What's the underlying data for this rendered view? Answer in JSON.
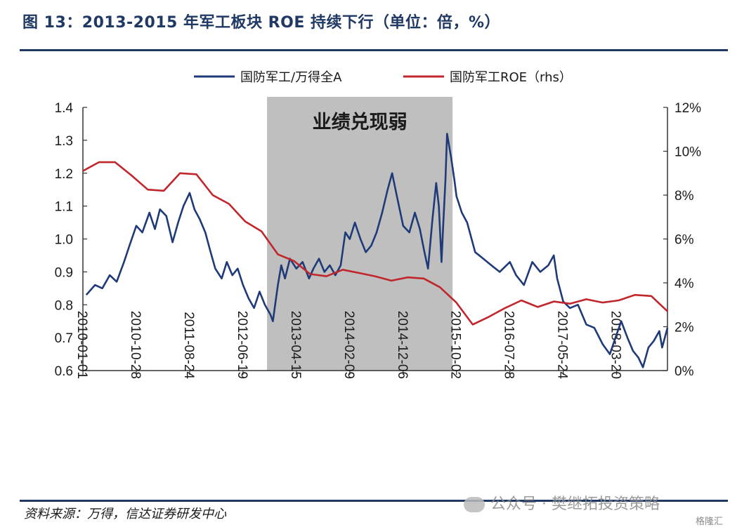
{
  "header": {
    "title": "图 13：2013-2015 年军工板块 ROE 持续下行（单位：倍，%）"
  },
  "footer": {
    "source": "资料来源：万得，信达证券研发中心",
    "watermark": "公众号 · 樊继拓投资策略",
    "stamp": "格隆汇"
  },
  "colors": {
    "series_left": "#1f3a78",
    "series_right": "#c0262c",
    "shade": "#bfbfbf",
    "title": "#1f3864"
  },
  "chart_data": {
    "type": "line",
    "title": "",
    "x_tick_labels": [
      "2010-01-01",
      "2010-10-28",
      "2011-08-24",
      "2012-06-19",
      "2013-04-15",
      "2014-02-09",
      "2014-12-06",
      "2015-10-02",
      "2016-07-28",
      "2017-05-24",
      "2018-03-20"
    ],
    "xlim": [
      "2010-01-01",
      "2018-12-31"
    ],
    "ylim_left": [
      0.6,
      1.4
    ],
    "ylim_right": [
      0,
      12
    ],
    "y_ticks_left": [
      "0.6",
      "0.7",
      "0.8",
      "0.9",
      "1.0",
      "1.1",
      "1.2",
      "1.3",
      "1.4"
    ],
    "y_ticks_right": [
      "0%",
      "2%",
      "4%",
      "6%",
      "8%",
      "10%",
      "12%"
    ],
    "legend_position": "top",
    "annotation": {
      "text": "业绩兑现弱",
      "x_start": "2012-11-01",
      "x_end": "2015-09-10"
    },
    "series": [
      {
        "name": "国防军工/万得全A",
        "axis": "left",
        "points": [
          [
            "2010-01-20",
            0.83
          ],
          [
            "2010-03-10",
            0.86
          ],
          [
            "2010-04-20",
            0.85
          ],
          [
            "2010-06-01",
            0.89
          ],
          [
            "2010-07-10",
            0.87
          ],
          [
            "2010-08-20",
            0.93
          ],
          [
            "2010-09-20",
            0.98
          ],
          [
            "2010-10-28",
            1.04
          ],
          [
            "2010-12-01",
            1.02
          ],
          [
            "2011-01-10",
            1.08
          ],
          [
            "2011-02-10",
            1.03
          ],
          [
            "2011-03-10",
            1.09
          ],
          [
            "2011-04-15",
            1.07
          ],
          [
            "2011-05-20",
            0.99
          ],
          [
            "2011-06-20",
            1.05
          ],
          [
            "2011-07-20",
            1.1
          ],
          [
            "2011-08-24",
            1.14
          ],
          [
            "2011-09-20",
            1.09
          ],
          [
            "2011-10-20",
            1.06
          ],
          [
            "2011-11-20",
            1.02
          ],
          [
            "2011-12-20",
            0.96
          ],
          [
            "2012-01-15",
            0.91
          ],
          [
            "2012-02-20",
            0.88
          ],
          [
            "2012-03-20",
            0.93
          ],
          [
            "2012-04-20",
            0.89
          ],
          [
            "2012-05-20",
            0.91
          ],
          [
            "2012-06-19",
            0.86
          ],
          [
            "2012-07-20",
            0.82
          ],
          [
            "2012-08-20",
            0.79
          ],
          [
            "2012-09-20",
            0.84
          ],
          [
            "2012-10-20",
            0.8
          ],
          [
            "2012-11-20",
            0.77
          ],
          [
            "2012-12-04",
            0.75
          ],
          [
            "2013-01-01",
            0.86
          ],
          [
            "2013-01-20",
            0.92
          ],
          [
            "2013-02-10",
            0.88
          ],
          [
            "2013-03-10",
            0.94
          ],
          [
            "2013-04-15",
            0.91
          ],
          [
            "2013-05-20",
            0.93
          ],
          [
            "2013-06-25",
            0.88
          ],
          [
            "2013-07-20",
            0.91
          ],
          [
            "2013-08-20",
            0.94
          ],
          [
            "2013-09-20",
            0.9
          ],
          [
            "2013-10-20",
            0.92
          ],
          [
            "2013-11-20",
            0.89
          ],
          [
            "2013-12-20",
            0.92
          ],
          [
            "2014-01-15",
            1.02
          ],
          [
            "2014-02-09",
            1.0
          ],
          [
            "2014-03-10",
            1.05
          ],
          [
            "2014-04-10",
            1.0
          ],
          [
            "2014-05-10",
            0.96
          ],
          [
            "2014-06-10",
            0.98
          ],
          [
            "2014-07-10",
            1.02
          ],
          [
            "2014-08-10",
            1.08
          ],
          [
            "2014-09-10",
            1.15
          ],
          [
            "2014-10-05",
            1.2
          ],
          [
            "2014-11-01",
            1.13
          ],
          [
            "2014-12-06",
            1.04
          ],
          [
            "2015-01-10",
            1.02
          ],
          [
            "2015-02-10",
            1.08
          ],
          [
            "2015-03-10",
            1.03
          ],
          [
            "2015-04-05",
            0.96
          ],
          [
            "2015-04-25",
            0.91
          ],
          [
            "2015-05-20",
            1.06
          ],
          [
            "2015-06-10",
            1.17
          ],
          [
            "2015-06-25",
            1.1
          ],
          [
            "2015-07-10",
            0.93
          ],
          [
            "2015-07-20",
            1.05
          ],
          [
            "2015-08-01",
            1.18
          ],
          [
            "2015-08-10",
            1.32
          ],
          [
            "2015-09-01",
            1.25
          ],
          [
            "2015-09-20",
            1.18
          ],
          [
            "2015-10-02",
            1.13
          ],
          [
            "2015-11-01",
            1.08
          ],
          [
            "2015-12-01",
            1.05
          ],
          [
            "2016-01-15",
            0.96
          ],
          [
            "2016-03-01",
            0.94
          ],
          [
            "2016-04-15",
            0.92
          ],
          [
            "2016-06-01",
            0.9
          ],
          [
            "2016-07-28",
            0.93
          ],
          [
            "2016-09-01",
            0.89
          ],
          [
            "2016-10-15",
            0.86
          ],
          [
            "2016-12-01",
            0.93
          ],
          [
            "2017-01-15",
            0.9
          ],
          [
            "2017-03-01",
            0.92
          ],
          [
            "2017-04-01",
            0.95
          ],
          [
            "2017-04-20",
            0.88
          ],
          [
            "2017-05-24",
            0.81
          ],
          [
            "2017-07-01",
            0.79
          ],
          [
            "2017-08-15",
            0.8
          ],
          [
            "2017-10-01",
            0.74
          ],
          [
            "2017-11-15",
            0.73
          ],
          [
            "2018-01-01",
            0.68
          ],
          [
            "2018-02-10",
            0.65
          ],
          [
            "2018-03-20",
            0.71
          ],
          [
            "2018-04-15",
            0.75
          ],
          [
            "2018-05-20",
            0.7
          ],
          [
            "2018-06-20",
            0.66
          ],
          [
            "2018-07-20",
            0.64
          ],
          [
            "2018-08-15",
            0.61
          ],
          [
            "2018-09-15",
            0.67
          ],
          [
            "2018-10-15",
            0.69
          ],
          [
            "2018-11-15",
            0.72
          ],
          [
            "2018-12-01",
            0.67
          ],
          [
            "2018-12-31",
            0.73
          ]
        ]
      },
      {
        "name": "国防军工ROE（rhs）",
        "axis": "right",
        "points": [
          [
            "2010-01-01",
            9.1
          ],
          [
            "2010-04-01",
            9.5
          ],
          [
            "2010-07-01",
            9.5
          ],
          [
            "2010-10-01",
            8.9
          ],
          [
            "2011-01-01",
            8.25
          ],
          [
            "2011-04-01",
            8.2
          ],
          [
            "2011-07-01",
            9.0
          ],
          [
            "2011-10-01",
            8.95
          ],
          [
            "2012-01-01",
            8.0
          ],
          [
            "2012-04-01",
            7.6
          ],
          [
            "2012-07-01",
            6.8
          ],
          [
            "2012-10-01",
            6.35
          ],
          [
            "2013-01-01",
            5.3
          ],
          [
            "2013-04-01",
            5.0
          ],
          [
            "2013-07-01",
            4.4
          ],
          [
            "2013-10-01",
            4.3
          ],
          [
            "2014-01-01",
            4.6
          ],
          [
            "2014-04-01",
            4.45
          ],
          [
            "2014-07-01",
            4.3
          ],
          [
            "2014-10-01",
            4.1
          ],
          [
            "2015-01-01",
            4.25
          ],
          [
            "2015-04-01",
            4.2
          ],
          [
            "2015-07-01",
            3.8
          ],
          [
            "2015-10-01",
            3.1
          ],
          [
            "2016-01-01",
            2.1
          ],
          [
            "2016-04-01",
            2.45
          ],
          [
            "2016-07-01",
            2.85
          ],
          [
            "2016-10-01",
            3.2
          ],
          [
            "2017-01-01",
            2.9
          ],
          [
            "2017-04-01",
            3.15
          ],
          [
            "2017-07-01",
            3.05
          ],
          [
            "2017-10-01",
            3.25
          ],
          [
            "2018-01-01",
            3.1
          ],
          [
            "2018-04-01",
            3.2
          ],
          [
            "2018-07-01",
            3.45
          ],
          [
            "2018-10-01",
            3.4
          ],
          [
            "2018-12-31",
            2.7
          ]
        ]
      }
    ]
  }
}
